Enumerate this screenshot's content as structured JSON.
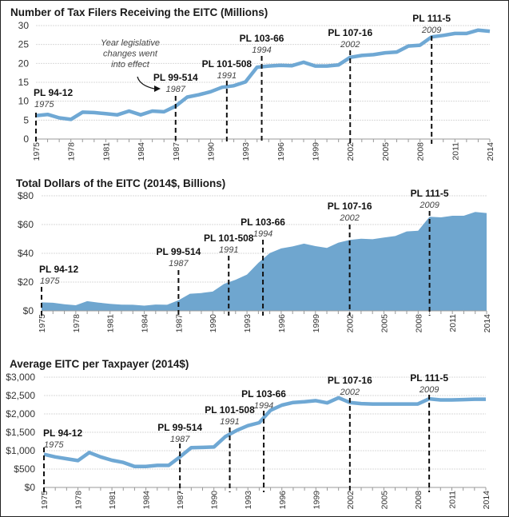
{
  "chart_data": [
    {
      "type": "line",
      "title": "Number of Tax Filers Receiving the EITC (Millions)",
      "xlabel": "",
      "ylabel": "",
      "x": [
        1975,
        1976,
        1977,
        1978,
        1979,
        1980,
        1981,
        1982,
        1983,
        1984,
        1985,
        1986,
        1987,
        1988,
        1989,
        1990,
        1991,
        1992,
        1993,
        1994,
        1995,
        1996,
        1997,
        1998,
        1999,
        2000,
        2001,
        2002,
        2003,
        2004,
        2005,
        2006,
        2007,
        2008,
        2009,
        2010,
        2011,
        2012,
        2013,
        2014
      ],
      "values": [
        6.2,
        6.5,
        5.6,
        5.2,
        7.1,
        7.0,
        6.7,
        6.4,
        7.4,
        6.4,
        7.4,
        7.2,
        8.7,
        11.1,
        11.7,
        12.5,
        13.7,
        14.1,
        15.1,
        19.0,
        19.3,
        19.5,
        19.4,
        20.3,
        19.3,
        19.3,
        19.6,
        21.6,
        22.1,
        22.3,
        22.8,
        23.0,
        24.6,
        24.8,
        27.0,
        27.4,
        27.9,
        27.9,
        28.8,
        28.5
      ],
      "ylim": [
        0,
        30
      ],
      "yticks": [
        0,
        5,
        10,
        15,
        20,
        25,
        30
      ],
      "ytick_labels": [
        "0",
        "5",
        "10",
        "15",
        "20",
        "25",
        "30"
      ],
      "xtick_labels": [
        "1975",
        "1978",
        "1981",
        "1984",
        "1987",
        "1990",
        "1993",
        "1996",
        "1999",
        "2002",
        "2005",
        "2008",
        "2011",
        "2014"
      ],
      "grid": true,
      "color": "#6fa8d4",
      "annotation": "Year legislative changes went into effect",
      "annotation_lines": [
        "Year legislative",
        "changes went",
        "into effect"
      ]
    },
    {
      "type": "area",
      "title": "Total Dollars of the EITC  (2014$, Billions)",
      "xlabel": "",
      "ylabel": "",
      "x": [
        1975,
        1976,
        1977,
        1978,
        1979,
        1980,
        1981,
        1982,
        1983,
        1984,
        1985,
        1986,
        1987,
        1988,
        1989,
        1990,
        1991,
        1992,
        1993,
        1994,
        1995,
        1996,
        1997,
        1998,
        1999,
        2000,
        2001,
        2002,
        2003,
        2004,
        2005,
        2006,
        2007,
        2008,
        2009,
        2010,
        2011,
        2012,
        2013,
        2014
      ],
      "values": [
        5.9,
        5.6,
        4.6,
        3.9,
        6.7,
        5.7,
        4.9,
        4.3,
        4.2,
        3.6,
        4.4,
        4.2,
        7.4,
        11.9,
        12.4,
        13.4,
        18.7,
        21.6,
        25.2,
        33.4,
        40.1,
        43.4,
        44.8,
        46.7,
        45.0,
        43.8,
        47.4,
        49.3,
        50.1,
        49.8,
        51.0,
        52.0,
        55.2,
        55.7,
        65.4,
        65.0,
        66.1,
        66.1,
        68.8,
        68.0
      ],
      "ylim": [
        0,
        80
      ],
      "yticks": [
        0,
        20,
        40,
        60,
        80
      ],
      "ytick_labels": [
        "$0",
        "$20",
        "$40",
        "$60",
        "$80"
      ],
      "xtick_labels": [
        "1975",
        "1978",
        "1981",
        "1984",
        "1987",
        "1990",
        "1993",
        "1996",
        "1999",
        "2002",
        "2005",
        "2008",
        "2011",
        "2014"
      ],
      "grid": true,
      "color": "#6fa6cf"
    },
    {
      "type": "line",
      "title": "Average EITC per Taxpayer (2014$)",
      "xlabel": "",
      "ylabel": "",
      "x": [
        1975,
        1976,
        1977,
        1978,
        1979,
        1980,
        1981,
        1982,
        1983,
        1984,
        1985,
        1986,
        1987,
        1988,
        1989,
        1990,
        1991,
        1992,
        1993,
        1994,
        1995,
        1996,
        1997,
        1998,
        1999,
        2000,
        2001,
        2002,
        2003,
        2004,
        2005,
        2006,
        2007,
        2008,
        2009,
        2010,
        2011,
        2012,
        2013,
        2014
      ],
      "values": [
        900,
        830,
        780,
        730,
        950,
        830,
        740,
        680,
        570,
        570,
        600,
        600,
        830,
        1080,
        1090,
        1100,
        1380,
        1550,
        1680,
        1760,
        2100,
        2240,
        2310,
        2330,
        2360,
        2300,
        2440,
        2310,
        2280,
        2270,
        2270,
        2270,
        2270,
        2270,
        2410,
        2380,
        2380,
        2390,
        2400,
        2400
      ],
      "ylim": [
        0,
        3000
      ],
      "yticks": [
        0,
        500,
        1000,
        1500,
        2000,
        2500,
        3000
      ],
      "ytick_labels": [
        "$0",
        "$500",
        "$1,000",
        "$1,500",
        "$2,000",
        "$2,500",
        "$3,000"
      ],
      "xtick_labels": [
        "1975",
        "1978",
        "1981",
        "1984",
        "1987",
        "1990",
        "1993",
        "1996",
        "1999",
        "2002",
        "2005",
        "2008",
        "2011",
        "2014"
      ],
      "grid": true,
      "color": "#6fa8d4"
    }
  ],
  "legislation": [
    {
      "law": "PL 94-12",
      "year": "1975",
      "x": 1975
    },
    {
      "law": "PL 99-514",
      "year": "1987",
      "x": 1987
    },
    {
      "law": "PL 101-508",
      "year": "1991",
      "x": 1991.4
    },
    {
      "law": "PL 103-66",
      "year": "1994",
      "x": 1994.4
    },
    {
      "law": "PL 107-16",
      "year": "2002",
      "x": 2002
    },
    {
      "law": "PL 111-5",
      "year": "2009",
      "x": 2009
    }
  ]
}
